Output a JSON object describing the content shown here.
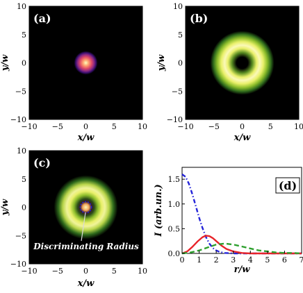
{
  "chart_data": [
    {
      "type": "heatmap",
      "panel_label": "(a)",
      "xlabel": "x/w",
      "ylabel": "y/w",
      "xlim": [
        -10,
        10
      ],
      "ylim": [
        -10,
        10
      ],
      "xticks": [
        "−10",
        "−5",
        "0",
        "5",
        "10"
      ],
      "yticks": [
        "10",
        "5",
        "0",
        "−5",
        "−10"
      ],
      "field": {
        "kind": "gaussian",
        "center": [
          0,
          0
        ],
        "peak_radius": 0,
        "width": 1.1
      },
      "colormap": [
        "#000000",
        "#3b0f70",
        "#8c2981",
        "#de4968",
        "#fe9f6d",
        "#fcfdbf"
      ]
    },
    {
      "type": "heatmap",
      "panel_label": "(b)",
      "xlabel": "x/w",
      "ylabel": "y/w",
      "xlim": [
        -10,
        10
      ],
      "ylim": [
        -10,
        10
      ],
      "xticks": [
        "−10",
        "−5",
        "0",
        "5",
        "10"
      ],
      "yticks": [
        "10",
        "5",
        "0",
        "−5",
        "−10"
      ],
      "field": {
        "kind": "ring",
        "center": [
          0,
          0
        ],
        "peak_radius": 2.1,
        "width": 1.5
      },
      "colormap": [
        "#000000",
        "#2f6b1c",
        "#8fbf2c",
        "#e9f06a",
        "#fbf8b8"
      ]
    },
    {
      "type": "heatmap",
      "panel_label": "(c)",
      "xlabel": "x/w",
      "ylabel": "y/w",
      "xlim": [
        -10,
        10
      ],
      "ylim": [
        -10,
        10
      ],
      "xticks": [
        "−10",
        "−5",
        "0",
        "5",
        "10"
      ],
      "yticks": [
        "10",
        "5",
        "0",
        "−5",
        "−10"
      ],
      "field": {
        "kind": "gaussian_plus_ring",
        "center": [
          0,
          0
        ],
        "core_width": 0.6,
        "peak_radius": 2.1,
        "width": 1.5
      },
      "colormap": [
        "#000000",
        "#2f6b1c",
        "#8fbf2c",
        "#e9f06a",
        "#fbf8b8"
      ],
      "discriminating_radius": 0.9,
      "annotation": "Discriminating Radius"
    },
    {
      "type": "line",
      "panel_label": "(d)",
      "xlabel": "r/w",
      "ylabel": "I (arb.un.)",
      "xlim": [
        0,
        7
      ],
      "ylim": [
        0,
        1.6
      ],
      "xticks": [
        "0",
        "1",
        "2",
        "3",
        "4",
        "5",
        "6",
        "7"
      ],
      "yticks": [
        "0.0",
        "0.5",
        "1.0",
        "1.5"
      ],
      "series": [
        {
          "color": "#2323d9",
          "dash": "dash-dot",
          "x": [
            0,
            0.2,
            0.4,
            0.6,
            0.8,
            1.0,
            1.2,
            1.4,
            1.6,
            1.8,
            2.0,
            2.2,
            2.5,
            3.0,
            3.5,
            7.0
          ],
          "y": [
            1.6,
            1.55,
            1.41,
            1.2,
            0.96,
            0.72,
            0.51,
            0.33,
            0.2,
            0.11,
            0.06,
            0.03,
            0.01,
            0.0,
            0.0,
            0.0
          ]
        },
        {
          "color": "#e8242a",
          "dash": "solid",
          "x": [
            0,
            0.3,
            0.6,
            0.9,
            1.2,
            1.4,
            1.6,
            1.8,
            2.0,
            2.3,
            2.6,
            3.0,
            3.5,
            4.0,
            5.0,
            7.0
          ],
          "y": [
            0.0,
            0.04,
            0.13,
            0.24,
            0.33,
            0.36,
            0.35,
            0.31,
            0.25,
            0.16,
            0.09,
            0.04,
            0.01,
            0.0,
            0.0,
            0.0
          ]
        },
        {
          "color": "#2ea02e",
          "dash": "dashed",
          "x": [
            0,
            0.5,
            1.0,
            1.5,
            2.0,
            2.5,
            3.0,
            3.5,
            4.0,
            4.5,
            5.0,
            5.5,
            6.0,
            6.5,
            7.0
          ],
          "y": [
            0.0,
            0.02,
            0.06,
            0.12,
            0.18,
            0.2,
            0.18,
            0.14,
            0.1,
            0.06,
            0.04,
            0.02,
            0.01,
            0.01,
            0.0
          ]
        }
      ]
    }
  ]
}
